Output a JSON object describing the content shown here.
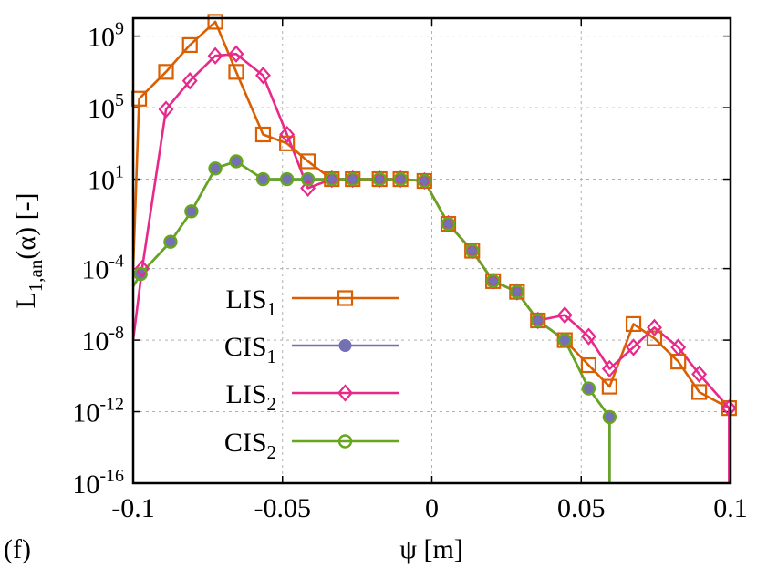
{
  "panel_tag": "(f)",
  "chart_data": {
    "type": "line",
    "xlabel": "ψ [m]",
    "ylabel": {
      "main": "L",
      "sub": "1,an",
      "rest": "(α) [-]"
    },
    "xlim": [
      -0.1,
      0.1
    ],
    "ylim_log10": [
      -16,
      10
    ],
    "y_scale": "log",
    "grid": true,
    "legend_position": "bottom-left",
    "x_ticks": [
      {
        "value": -0.1,
        "label": "-0.1"
      },
      {
        "value": -0.05,
        "label": "-0.05"
      },
      {
        "value": 0,
        "label": "0"
      },
      {
        "value": 0.05,
        "label": "0.05"
      },
      {
        "value": 0.1,
        "label": "0.1"
      }
    ],
    "y_ticks": [
      {
        "exp": 9,
        "base": "10",
        "sup": "9"
      },
      {
        "exp": 5,
        "base": "10",
        "sup": "5"
      },
      {
        "exp": 1,
        "base": "10",
        "sup": "1"
      },
      {
        "exp": -4,
        "base": "10",
        "sup": "-4"
      },
      {
        "exp": -8,
        "base": "10",
        "sup": "-8"
      },
      {
        "exp": -12,
        "base": "10",
        "sup": "-12"
      },
      {
        "exp": -16,
        "base": "10",
        "sup": "-16"
      }
    ],
    "series": [
      {
        "name": "LIS",
        "name_sub": "1",
        "color": "#d95f02",
        "marker": "square-open",
        "x": [
          -0.1,
          -0.098,
          -0.089,
          -0.081,
          -0.0725,
          -0.0655,
          -0.0565,
          -0.0485,
          -0.0415,
          -0.0335,
          -0.0265,
          -0.0175,
          -0.0105,
          -0.0025,
          0.0055,
          0.0135,
          0.0205,
          0.0285,
          0.0355,
          0.0445,
          0.0525,
          0.0595,
          0.0675,
          0.0745,
          0.0825,
          0.0895,
          0.0995
        ],
        "log10y": [
          -4,
          5.5,
          7.0,
          8.5,
          9.8,
          7.0,
          3.5,
          3.0,
          2.0,
          1.0,
          1.0,
          1.0,
          1.0,
          0.9,
          -1.5,
          -3.0,
          -4.7,
          -5.3,
          -6.9,
          -8.0,
          -9.4,
          -10.6,
          -7.1,
          -7.9,
          -9.2,
          -10.9,
          -11.8
        ]
      },
      {
        "name": "CIS",
        "name_sub": "1",
        "color": "#7570b3",
        "marker": "circle-filled",
        "x": [
          -0.1,
          -0.0975,
          -0.0875,
          -0.0805,
          -0.0725,
          -0.0655,
          -0.0565,
          -0.0485,
          -0.0415,
          -0.0335,
          -0.0265,
          -0.0175,
          -0.0105,
          -0.0025,
          0.0055,
          0.0135,
          0.0205,
          0.0285,
          0.0355,
          0.0445,
          0.0525,
          0.0595,
          0.0595
        ],
        "log10y": [
          -5,
          -4.3,
          -2.5,
          -0.8,
          1.6,
          2.0,
          1.0,
          1.0,
          1.0,
          1.0,
          1.0,
          1.0,
          1.0,
          0.9,
          -1.5,
          -3.0,
          -4.7,
          -5.3,
          -6.9,
          -8.0,
          -10.7,
          -12.3,
          -16
        ]
      },
      {
        "name": "LIS",
        "name_sub": "2",
        "color": "#e7298a",
        "marker": "diamond-open",
        "x": [
          -0.1,
          -0.097,
          -0.089,
          -0.081,
          -0.0725,
          -0.0655,
          -0.0565,
          -0.0485,
          -0.0415,
          -0.0335,
          -0.0265,
          -0.0175,
          -0.0105,
          -0.0025,
          0.0055,
          0.0135,
          0.0205,
          0.0285,
          0.0355,
          0.0445,
          0.0525,
          0.0595,
          0.0675,
          0.0745,
          0.0825,
          0.0895,
          0.0995,
          0.0995
        ],
        "log10y": [
          -8,
          -4.0,
          4.9,
          6.5,
          7.9,
          8.0,
          6.8,
          3.5,
          0.5,
          1.0,
          1.0,
          1.0,
          1.0,
          0.9,
          -1.5,
          -3.0,
          -4.7,
          -5.3,
          -6.9,
          -6.6,
          -7.8,
          -9.6,
          -8.4,
          -7.3,
          -8.4,
          -9.9,
          -11.8,
          -16
        ]
      },
      {
        "name": "CIS",
        "name_sub": "2",
        "color": "#66a61e",
        "marker": "circle-open",
        "x": [
          -0.1,
          -0.0975,
          -0.0875,
          -0.0805,
          -0.0725,
          -0.0655,
          -0.0565,
          -0.0485,
          -0.0415,
          -0.0335,
          -0.0265,
          -0.0175,
          -0.0105,
          -0.0025,
          0.0055,
          0.0135,
          0.0205,
          0.0285,
          0.0355,
          0.0445,
          0.0525,
          0.0595,
          0.0595
        ],
        "log10y": [
          -5,
          -4.3,
          -2.5,
          -0.8,
          1.6,
          2.0,
          1.0,
          1.0,
          1.0,
          1.0,
          1.0,
          1.0,
          1.0,
          0.9,
          -1.5,
          -3.0,
          -4.7,
          -5.3,
          -6.9,
          -8.0,
          -10.7,
          -12.3,
          -16
        ]
      }
    ]
  }
}
